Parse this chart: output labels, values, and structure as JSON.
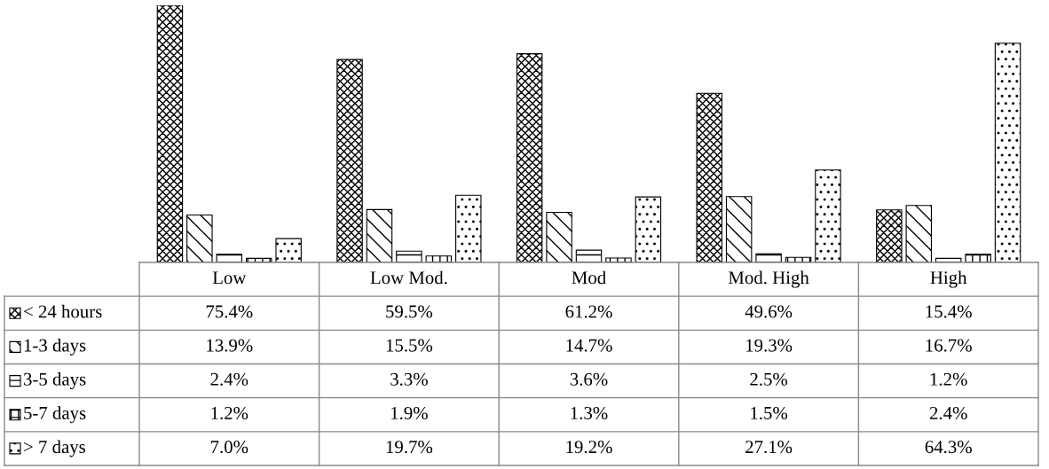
{
  "chart_data": {
    "type": "bar",
    "categories": [
      "Low",
      "Low Mod.",
      "Mod",
      "Mod. High",
      "High"
    ],
    "series": [
      {
        "name": "< 24 hours",
        "color": "#000000",
        "values": [
          75.4,
          59.5,
          61.2,
          49.6,
          15.4
        ],
        "value_labels": [
          "75.4%",
          "59.5%",
          "61.2%",
          "49.6%",
          "15.4%"
        ]
      },
      {
        "name": "1-3 days",
        "color": "#000000",
        "values": [
          13.9,
          15.5,
          14.7,
          19.3,
          16.7
        ],
        "value_labels": [
          "13.9%",
          "15.5%",
          "14.7%",
          "19.3%",
          "16.7%"
        ]
      },
      {
        "name": "3-5 days",
        "color": "#000000",
        "values": [
          2.4,
          3.3,
          3.6,
          2.5,
          1.2
        ],
        "value_labels": [
          "2.4%",
          "3.3%",
          "3.6%",
          "2.5%",
          "1.2%"
        ]
      },
      {
        "name": "5-7 days",
        "color": "#000000",
        "values": [
          1.2,
          1.9,
          1.3,
          1.5,
          2.4
        ],
        "value_labels": [
          "1.2%",
          "1.9%",
          "1.3%",
          "1.5%",
          "2.4%"
        ]
      },
      {
        "name": "> 7 days",
        "color": "#000000",
        "values": [
          7.0,
          19.7,
          19.2,
          27.1,
          64.3
        ],
        "value_labels": [
          "7.0%",
          "19.7%",
          "19.2%",
          "27.1%",
          "64.3%"
        ]
      }
    ],
    "legend": "left"
  }
}
